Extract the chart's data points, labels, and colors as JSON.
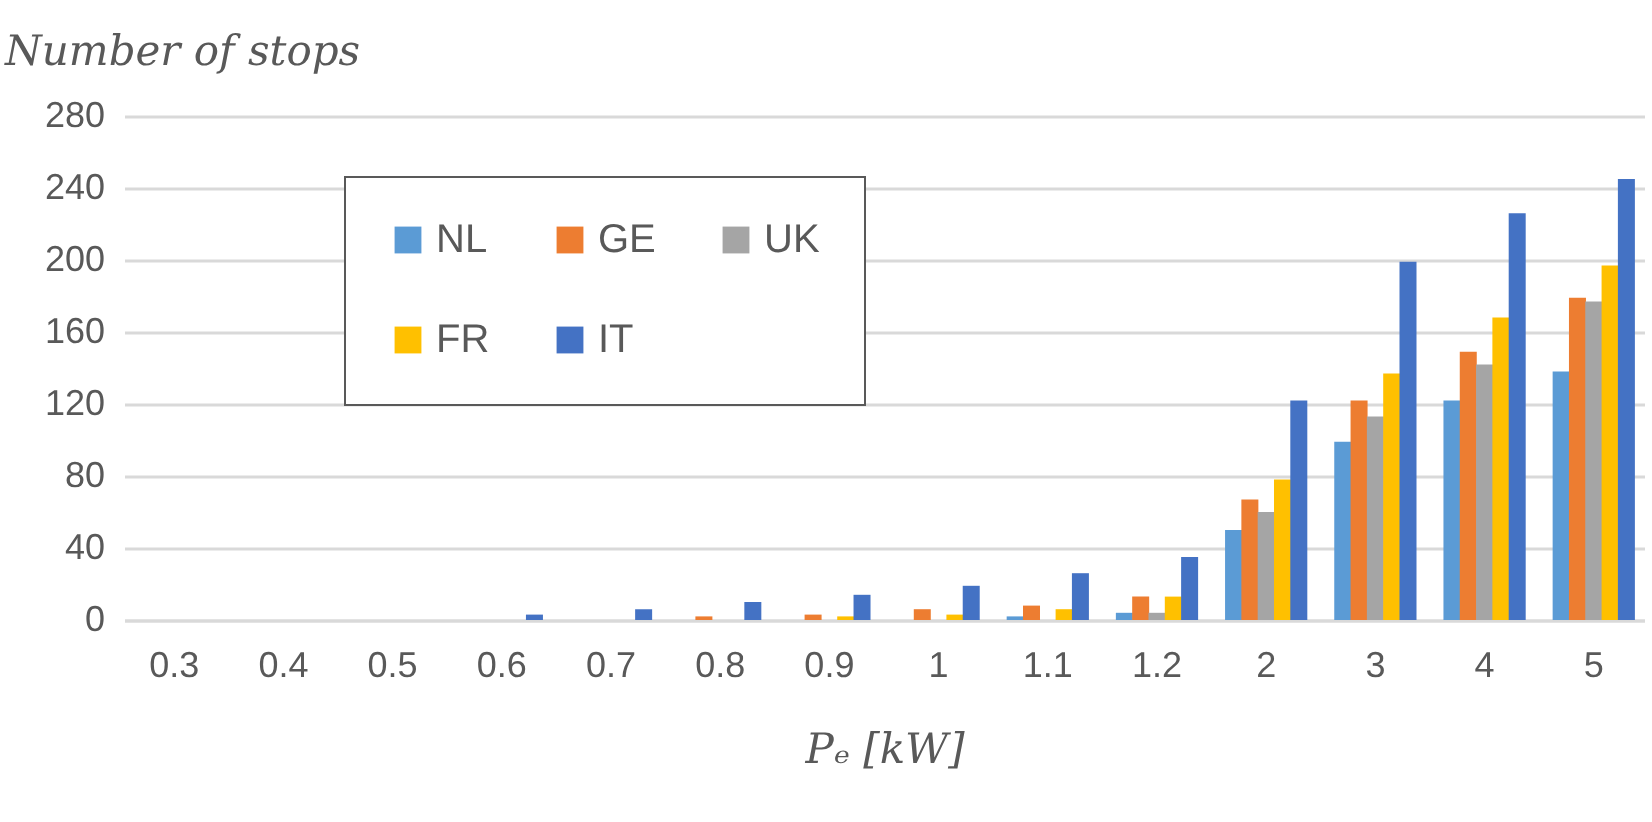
{
  "chart_data": {
    "type": "bar",
    "ylabel": "Number of stops",
    "xlabel": "Pₑ [kW]",
    "categories": [
      "0.3",
      "0.4",
      "0.5",
      "0.6",
      "0.7",
      "0.8",
      "0.9",
      "1",
      "1.1",
      "1.2",
      "2",
      "3",
      "4",
      "5"
    ],
    "series": [
      {
        "name": "NL",
        "color": "#5b9bd5",
        "values": [
          0,
          0,
          0,
          0,
          0,
          0,
          0,
          0,
          2,
          4,
          50,
          99,
          122,
          138
        ]
      },
      {
        "name": "GE",
        "color": "#ed7d31",
        "values": [
          0,
          0,
          0,
          0,
          0,
          2,
          3,
          6,
          8,
          13,
          67,
          122,
          149,
          179
        ]
      },
      {
        "name": "UK",
        "color": "#a5a5a5",
        "values": [
          0,
          0,
          0,
          0,
          0,
          0,
          0,
          0,
          0,
          4,
          60,
          113,
          142,
          177
        ]
      },
      {
        "name": "FR",
        "color": "#ffc000",
        "values": [
          0,
          0,
          0,
          0,
          0,
          0,
          2,
          3,
          6,
          13,
          78,
          137,
          168,
          197
        ]
      },
      {
        "name": "IT",
        "color": "#4472c4",
        "values": [
          0,
          0,
          0,
          3,
          6,
          10,
          14,
          19,
          26,
          35,
          122,
          199,
          226,
          245
        ]
      }
    ],
    "ylim": [
      0,
      280
    ],
    "yticks": [
      0,
      40,
      80,
      120,
      160,
      200,
      240,
      280
    ],
    "grid": "y",
    "legend": "top left"
  }
}
